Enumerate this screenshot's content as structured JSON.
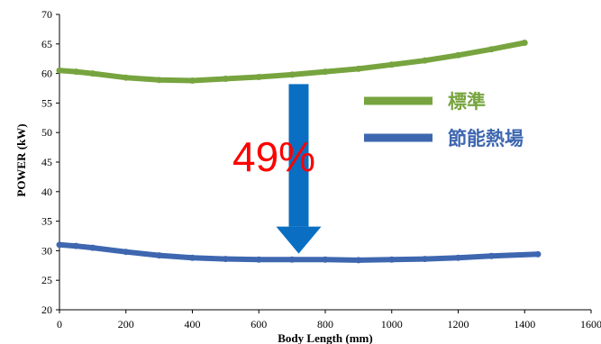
{
  "chart_data": {
    "type": "line",
    "xlabel": "Body Length (mm)",
    "ylabel": "POWER (kW)",
    "xlim": [
      0,
      1600
    ],
    "ylim": [
      20,
      70
    ],
    "x_ticks": [
      0,
      200,
      400,
      600,
      800,
      1000,
      1200,
      1400,
      1600
    ],
    "y_ticks": [
      20,
      25,
      30,
      35,
      40,
      45,
      50,
      55,
      60,
      65,
      70
    ],
    "grid": false,
    "legend_position": "right",
    "series": [
      {
        "name": "標準",
        "color": "#77a43f",
        "x": [
          0,
          50,
          100,
          200,
          300,
          400,
          500,
          600,
          700,
          800,
          900,
          1000,
          1100,
          1200,
          1300,
          1400
        ],
        "y": [
          60.5,
          60.3,
          60.0,
          59.3,
          58.9,
          58.8,
          59.1,
          59.4,
          59.8,
          60.3,
          60.8,
          61.5,
          62.2,
          63.1,
          64.1,
          65.2
        ]
      },
      {
        "name": "節能熱場",
        "color": "#3e67b0",
        "x": [
          0,
          50,
          100,
          200,
          300,
          400,
          500,
          600,
          700,
          800,
          900,
          1000,
          1100,
          1200,
          1300,
          1440
        ],
        "y": [
          31.0,
          30.8,
          30.5,
          29.8,
          29.2,
          28.8,
          28.6,
          28.5,
          28.5,
          28.5,
          28.4,
          28.5,
          28.6,
          28.8,
          29.1,
          29.4
        ]
      }
    ],
    "annotations": [
      {
        "text": "49%",
        "color": "#ff0000"
      }
    ],
    "arrow_color": "#0a6fc2"
  }
}
